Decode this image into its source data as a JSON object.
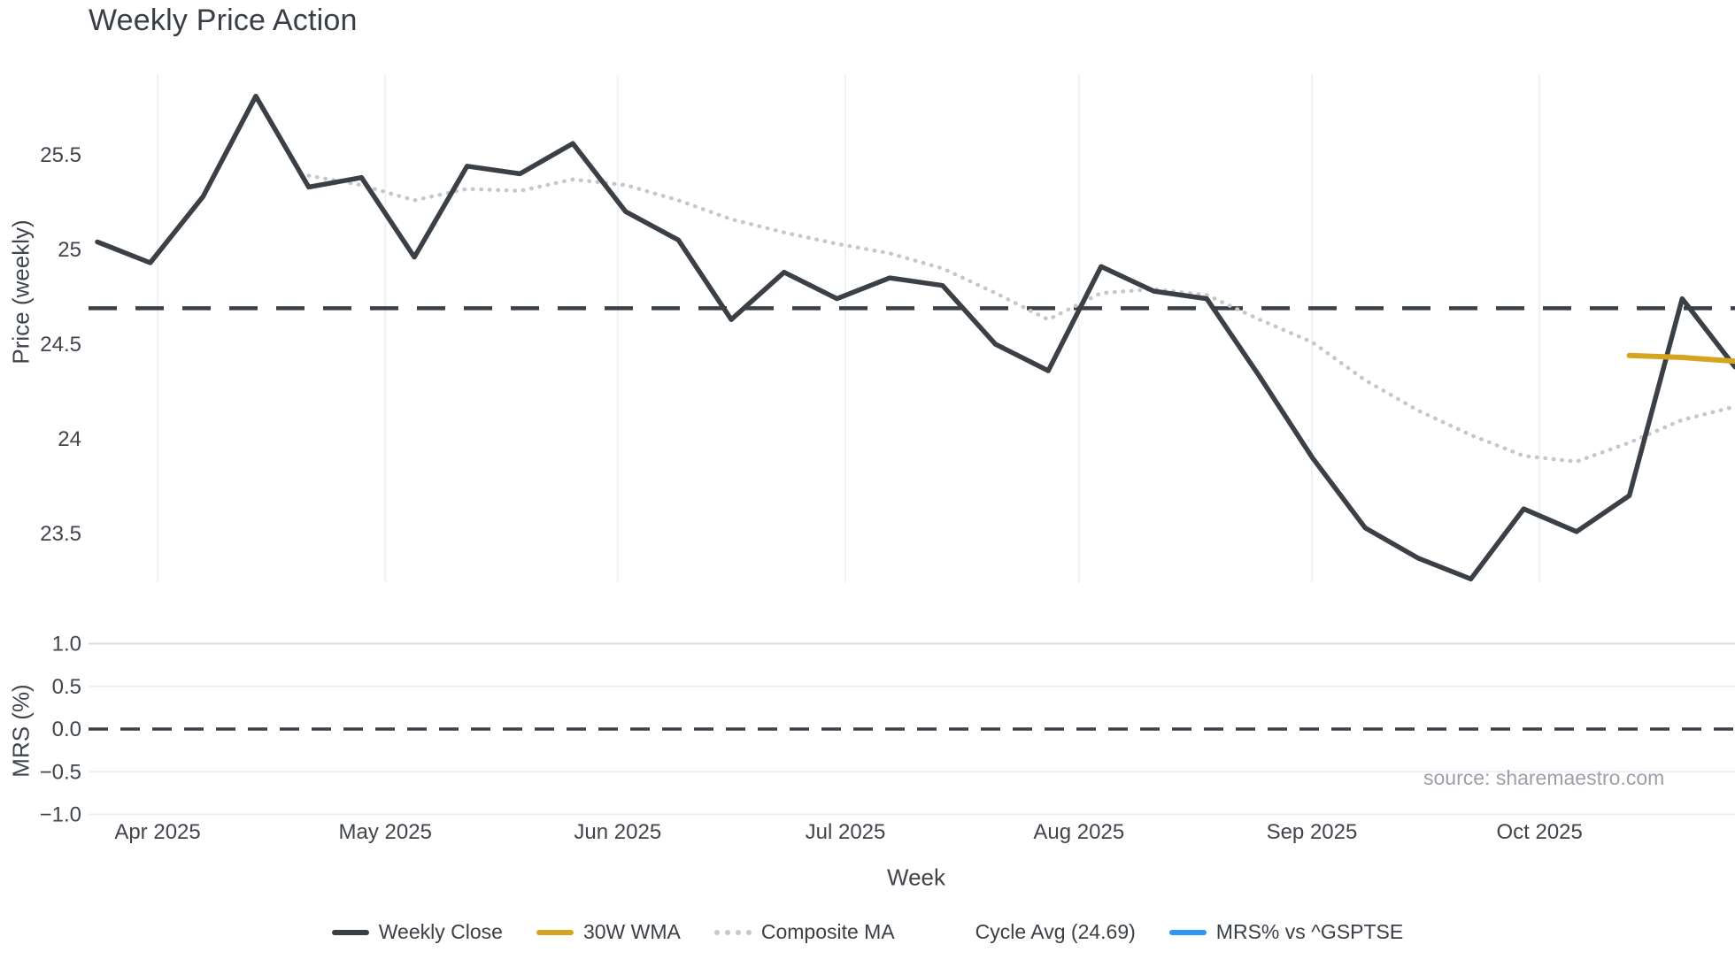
{
  "title": "Weekly Price Action",
  "source_note": "source: sharemaestro.com",
  "axes": {
    "price_axis_label": "Price (weekly)",
    "mrs_axis_label": "MRS (%)",
    "x_axis_label": "Week"
  },
  "colors": {
    "close_line": "#3b4046",
    "wma_line": "#d6a51f",
    "composite_line": "#c4c8cd",
    "cycle_dash": "#3b4046",
    "mrs_blue": "#2e96f5",
    "grid_vertical": "#eef1f5",
    "grid_horizontal": "#edeff4",
    "grid_horizontal_strong": "#d9dde2",
    "tick_text": "#3f454b",
    "source_text": "#9ba0a8"
  },
  "legend": {
    "items": [
      {
        "id": "weekly-close",
        "label": "Weekly Close",
        "color": "#3b4046",
        "style": "solid"
      },
      {
        "id": "30w-wma",
        "label": "30W WMA",
        "color": "#d6a51f",
        "style": "solid"
      },
      {
        "id": "composite-ma",
        "label": "Composite MA",
        "color": "#c4c8cd",
        "style": "dotted"
      },
      {
        "id": "cycle-avg",
        "label": "Cycle Avg (24.69)",
        "color": "#3b4046",
        "style": "dashed"
      },
      {
        "id": "mrs-gsptse",
        "label": "MRS% vs ^GSPTSE",
        "color": "#2e96f5",
        "style": "solid"
      }
    ]
  },
  "chart_data": {
    "type": "line",
    "title": "Weekly Price Action",
    "xlabel": "Week",
    "x": {
      "unit": "week-index",
      "n_points": 32,
      "ticks": [
        {
          "label": "Apr 2025",
          "week_pos": 1.14
        },
        {
          "label": "May 2025",
          "week_pos": 5.45
        },
        {
          "label": "Jun 2025",
          "week_pos": 9.85
        },
        {
          "label": "Jul 2025",
          "week_pos": 14.16
        },
        {
          "label": "Aug 2025",
          "week_pos": 18.58
        },
        {
          "label": "Sep 2025",
          "week_pos": 22.99
        },
        {
          "label": "Oct 2025",
          "week_pos": 27.3
        }
      ]
    },
    "panels": [
      {
        "id": "price",
        "ylabel": "Price (weekly)",
        "ylim": [
          23.15,
          25.95
        ],
        "yticks": [
          {
            "v": 25.5,
            "label": "25.5"
          },
          {
            "v": 25.0,
            "label": "25"
          },
          {
            "v": 24.5,
            "label": "24.5"
          },
          {
            "v": 24.0,
            "label": "24"
          },
          {
            "v": 23.5,
            "label": "23.5"
          }
        ],
        "grid": "vertical month gridlines only"
      },
      {
        "id": "mrs",
        "ylabel": "MRS (%)",
        "ylim": [
          -1.15,
          1.15
        ],
        "yticks": [
          {
            "v": 1.0,
            "label": "1.0"
          },
          {
            "v": 0.5,
            "label": "0.5"
          },
          {
            "v": 0.0,
            "label": "0.0"
          },
          {
            "v": -0.5,
            "label": "−0.5"
          },
          {
            "v": -1.0,
            "label": "−1.0"
          }
        ],
        "grid": "horizontal gridlines",
        "zero_dashline": 0.0
      }
    ],
    "series": [
      {
        "name": "Weekly Close",
        "panel": "price",
        "type": "line",
        "style": "solid",
        "color": "#3b4046",
        "start_week": 0,
        "values": [
          25.04,
          24.93,
          25.28,
          25.81,
          25.33,
          25.38,
          24.96,
          25.44,
          25.4,
          25.56,
          25.2,
          25.05,
          24.63,
          24.88,
          24.74,
          24.85,
          24.81,
          24.5,
          24.36,
          24.91,
          24.78,
          24.74,
          24.33,
          23.9,
          23.53,
          23.37,
          23.26,
          23.63,
          23.51,
          23.7,
          24.74,
          24.38
        ]
      },
      {
        "name": "30W WMA",
        "panel": "price",
        "type": "line",
        "style": "solid",
        "color": "#d6a51f",
        "start_week": 29,
        "values": [
          24.44,
          24.43,
          24.41
        ]
      },
      {
        "name": "Composite MA",
        "panel": "price",
        "type": "line",
        "style": "dotted",
        "color": "#c4c8cd",
        "start_week": 4,
        "values": [
          25.39,
          25.34,
          25.26,
          25.32,
          25.31,
          25.37,
          25.34,
          25.26,
          25.16,
          25.09,
          25.03,
          24.98,
          24.9,
          24.77,
          24.63,
          24.77,
          24.79,
          24.76,
          24.63,
          24.51,
          24.31,
          24.15,
          24.02,
          23.91,
          23.88,
          23.98,
          24.1,
          24.17
        ]
      },
      {
        "name": "Cycle Avg",
        "panel": "price",
        "type": "hline-dashed",
        "color": "#3b4046",
        "value": 24.69
      },
      {
        "name": "MRS% vs ^GSPTSE",
        "panel": "mrs",
        "type": "line",
        "style": "solid",
        "color": "#2e96f5",
        "visible_in_plot": false,
        "values": []
      }
    ]
  }
}
